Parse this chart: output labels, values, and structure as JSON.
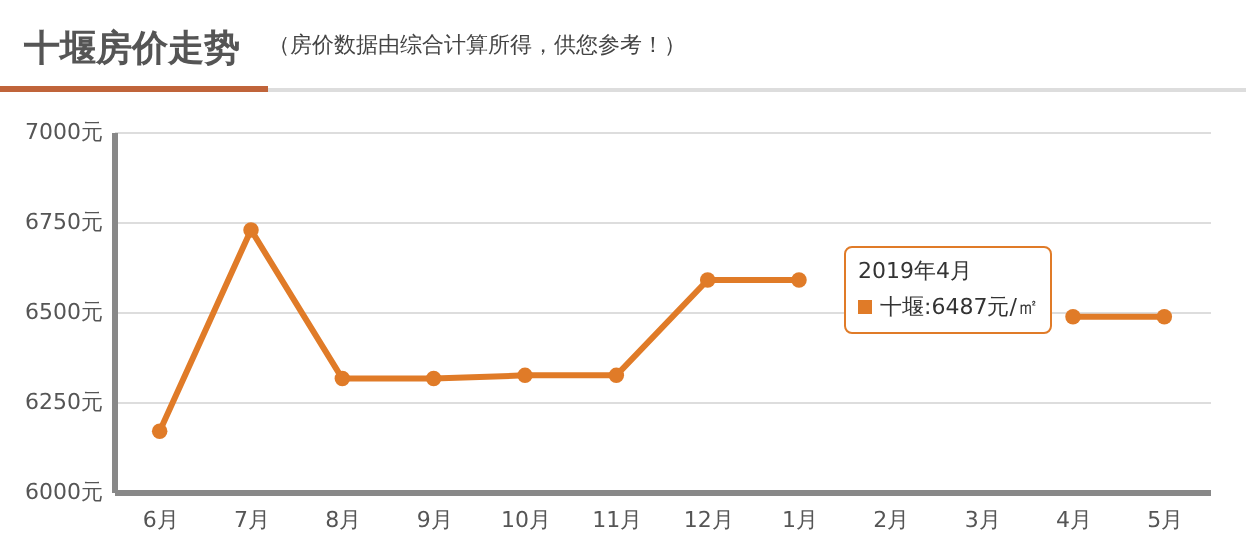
{
  "chart_data": {
    "type": "line",
    "title": "十堰房价走势",
    "subtitle": "（房价数据由综合计算所得，供您参考！）",
    "categories": [
      "6月",
      "7月",
      "8月",
      "9月",
      "10月",
      "11月",
      "12月",
      "1月",
      "2月",
      "3月",
      "4月",
      "5月"
    ],
    "series": [
      {
        "name": "十堰",
        "color": "#e07b28",
        "values": [
          6169,
          6728,
          6315,
          6315,
          6324,
          6324,
          6589,
          6589,
          null,
          null,
          6487,
          6487
        ]
      }
    ],
    "ylim": [
      6000,
      7000
    ],
    "yticks": [
      {
        "value": 6000,
        "label": "6000元"
      },
      {
        "value": 6250,
        "label": "6250元"
      },
      {
        "value": 6500,
        "label": "6500元"
      },
      {
        "value": 6750,
        "label": "6750元"
      },
      {
        "value": 7000,
        "label": "7000元"
      }
    ],
    "grid": "y",
    "marker": "circle",
    "line_style": "solid",
    "annotations": [
      "2019年4月",
      ":6487元/㎡"
    ],
    "legend": "top right"
  }
}
